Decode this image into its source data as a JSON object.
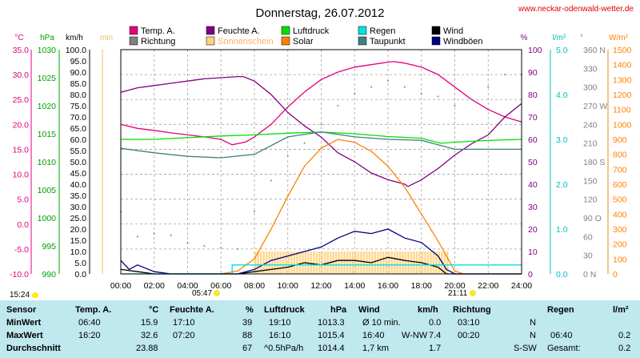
{
  "header": {
    "title": "Donnerstag, 26.07.2012",
    "site": "www.neckar-odenwald-wetter.de"
  },
  "legend": [
    {
      "label": "Temp. A.",
      "color": "#e0007f"
    },
    {
      "label": "Richtung",
      "color": "#808080"
    },
    {
      "label": "Feuchte A.",
      "color": "#800080"
    },
    {
      "label": "Sonnenschein",
      "color": "#ffd080"
    },
    {
      "label": "Luftdruck",
      "color": "#00e000"
    },
    {
      "label": "Solar",
      "color": "#ff8000"
    },
    {
      "label": "Regen",
      "color": "#00e0e0"
    },
    {
      "label": "Taupunkt",
      "color": "#408080"
    },
    {
      "label": "Wind",
      "color": "#000000"
    },
    {
      "label": "Windböen",
      "color": "#000080"
    }
  ],
  "axes_units": {
    "temp": "°C",
    "press": "hPa",
    "wind": "km/h",
    "sun": "min",
    "hum": "%",
    "rain": "l/m²",
    "dir": "°",
    "solar": "W/m²"
  },
  "sun_times": {
    "sunrise_marker": "15:24",
    "sunrise": "05:47",
    "sunset": "21:11"
  },
  "chart_data": {
    "type": "line",
    "title": "Donnerstag, 26.07.2012",
    "x_ticks": [
      "00:00",
      "02:00",
      "04:00",
      "06:00",
      "08:00",
      "10:00",
      "12:00",
      "14:00",
      "16:00",
      "18:00",
      "20:00",
      "22:00",
      "24:00"
    ],
    "x_range": [
      0,
      24
    ],
    "axes": {
      "temp": {
        "range": [
          -10,
          35
        ],
        "ticks": [
          "35.0",
          "30.0",
          "25.0",
          "20.0",
          "15.0",
          "10.0",
          "5.0",
          "0.0",
          "-5.0",
          "-10.0"
        ]
      },
      "press": {
        "range": [
          990,
          1030
        ],
        "ticks": [
          "1030",
          "1025",
          "1020",
          "1015",
          "1010",
          "1005",
          "1000",
          "995",
          "990"
        ]
      },
      "wind": {
        "range": [
          0,
          100
        ],
        "ticks": [
          "100.0",
          "95.0",
          "90.0",
          "85.0",
          "80.0",
          "75.0",
          "70.0",
          "65.0",
          "60.0",
          "55.0",
          "50.0",
          "45.0",
          "40.0",
          "35.0",
          "30.0",
          "25.0",
          "20.0",
          "15.0",
          "10.0",
          "5.0",
          "0.0"
        ]
      },
      "hum": {
        "range": [
          0,
          100
        ],
        "ticks": [
          "100",
          "90",
          "80",
          "70",
          "60",
          "50",
          "40",
          "30",
          "20",
          "10",
          "0"
        ]
      },
      "rain": {
        "range": [
          0,
          5
        ],
        "ticks": [
          "5.0",
          "4.0",
          "3.0",
          "2.0",
          "1.0",
          "0.0"
        ]
      },
      "dir": {
        "range": [
          0,
          360
        ],
        "ticks": [
          "360 N",
          "330",
          "300",
          "270 W",
          "240",
          "210",
          "180 S",
          "150",
          "120",
          "90 O",
          "60",
          "30",
          "0 N"
        ]
      },
      "solar": {
        "range": [
          0,
          1500
        ],
        "ticks": [
          "1500",
          "1400",
          "1300",
          "1200",
          "1100",
          "1000",
          "900",
          "800",
          "700",
          "600",
          "500",
          "400",
          "300",
          "200",
          "100",
          "0"
        ]
      }
    },
    "series": [
      {
        "name": "Temp. A.",
        "axis": "temp",
        "points": [
          [
            0,
            20.0
          ],
          [
            1,
            19.2
          ],
          [
            2,
            18.8
          ],
          [
            3,
            18.3
          ],
          [
            4,
            17.9
          ],
          [
            5,
            17.5
          ],
          [
            6,
            17.0
          ],
          [
            6.67,
            15.9
          ],
          [
            7.5,
            16.5
          ],
          [
            8,
            17.5
          ],
          [
            9,
            20.0
          ],
          [
            10,
            23.5
          ],
          [
            11,
            26.5
          ],
          [
            12,
            29.0
          ],
          [
            13,
            30.5
          ],
          [
            14,
            31.5
          ],
          [
            15,
            32.0
          ],
          [
            16,
            32.5
          ],
          [
            16.33,
            32.6
          ],
          [
            17,
            32.3
          ],
          [
            18,
            31.5
          ],
          [
            19,
            30.0
          ],
          [
            20,
            27.5
          ],
          [
            21,
            25.0
          ],
          [
            22,
            23.0
          ],
          [
            23,
            21.5
          ],
          [
            24,
            20.5
          ]
        ]
      },
      {
        "name": "Feuchte A.",
        "axis": "hum",
        "points": [
          [
            0,
            81
          ],
          [
            1,
            83
          ],
          [
            2,
            84
          ],
          [
            3,
            85
          ],
          [
            4,
            86
          ],
          [
            5,
            87
          ],
          [
            6,
            87.5
          ],
          [
            7,
            88
          ],
          [
            7.33,
            88
          ],
          [
            8,
            86
          ],
          [
            9,
            80
          ],
          [
            10,
            72
          ],
          [
            11,
            66
          ],
          [
            12,
            61
          ],
          [
            13,
            54
          ],
          [
            14,
            50
          ],
          [
            15,
            45
          ],
          [
            16,
            42
          ],
          [
            17,
            40
          ],
          [
            17.2,
            39
          ],
          [
            18,
            42
          ],
          [
            19,
            47
          ],
          [
            20,
            53
          ],
          [
            21,
            58
          ],
          [
            22,
            62
          ],
          [
            23,
            70
          ],
          [
            24,
            76
          ]
        ]
      },
      {
        "name": "Luftdruck",
        "axis": "press",
        "points": [
          [
            0,
            1014.0
          ],
          [
            2,
            1014.0
          ],
          [
            4,
            1014.3
          ],
          [
            6,
            1014.6
          ],
          [
            8,
            1014.8
          ],
          [
            10,
            1015.1
          ],
          [
            12,
            1015.3
          ],
          [
            14,
            1015.0
          ],
          [
            16,
            1014.5
          ],
          [
            18,
            1014.2
          ],
          [
            19.17,
            1013.3
          ],
          [
            20,
            1013.5
          ],
          [
            22,
            1013.8
          ],
          [
            24,
            1014.0
          ]
        ]
      },
      {
        "name": "Taupunkt",
        "axis": "temp",
        "points": [
          [
            0,
            15.2
          ],
          [
            2,
            14.3
          ],
          [
            4,
            13.6
          ],
          [
            6,
            13.3
          ],
          [
            8,
            14.0
          ],
          [
            10,
            17.5
          ],
          [
            12,
            18.5
          ],
          [
            14,
            17.5
          ],
          [
            16,
            17.0
          ],
          [
            18,
            16.8
          ],
          [
            20,
            15.0
          ],
          [
            22,
            15.0
          ],
          [
            24,
            15.0
          ]
        ]
      },
      {
        "name": "Solar",
        "axis": "solar",
        "points": [
          [
            6,
            0
          ],
          [
            7,
            20
          ],
          [
            8,
            100
          ],
          [
            9,
            300
          ],
          [
            10,
            520
          ],
          [
            11,
            720
          ],
          [
            12,
            840
          ],
          [
            13,
            900
          ],
          [
            14,
            880
          ],
          [
            15,
            820
          ],
          [
            16,
            720
          ],
          [
            17,
            580
          ],
          [
            18,
            400
          ],
          [
            19,
            220
          ],
          [
            19.5,
            120
          ],
          [
            20,
            20
          ],
          [
            20.5,
            0
          ]
        ]
      },
      {
        "name": "Wind",
        "axis": "wind",
        "points": [
          [
            0,
            2
          ],
          [
            1,
            1
          ],
          [
            2,
            0
          ],
          [
            3,
            0
          ],
          [
            4,
            0
          ],
          [
            5,
            0
          ],
          [
            6,
            0
          ],
          [
            7,
            0
          ],
          [
            8,
            1
          ],
          [
            9,
            2
          ],
          [
            10,
            3
          ],
          [
            11,
            5
          ],
          [
            12,
            4
          ],
          [
            13,
            6
          ],
          [
            14,
            6
          ],
          [
            15,
            5
          ],
          [
            16,
            7.4
          ],
          [
            17,
            6
          ],
          [
            18,
            5
          ],
          [
            19,
            3
          ],
          [
            19.5,
            0
          ],
          [
            20,
            0
          ],
          [
            22,
            0
          ],
          [
            24,
            0
          ]
        ]
      },
      {
        "name": "Windböen",
        "axis": "wind",
        "points": [
          [
            0,
            6
          ],
          [
            0.5,
            2
          ],
          [
            1,
            4
          ],
          [
            2,
            1
          ],
          [
            3,
            0
          ],
          [
            4,
            0
          ],
          [
            5,
            0
          ],
          [
            6,
            0
          ],
          [
            7,
            0
          ],
          [
            8,
            2
          ],
          [
            9,
            6
          ],
          [
            10,
            8
          ],
          [
            11,
            10
          ],
          [
            12,
            12
          ],
          [
            13,
            16
          ],
          [
            14,
            19
          ],
          [
            15,
            18
          ],
          [
            16,
            20
          ],
          [
            17,
            16
          ],
          [
            18,
            14
          ],
          [
            19,
            8
          ],
          [
            19.5,
            2
          ],
          [
            20,
            0
          ],
          [
            22,
            0
          ],
          [
            24,
            0
          ]
        ]
      },
      {
        "name": "Regen",
        "axis": "rain",
        "points": [
          [
            0,
            0
          ],
          [
            6.67,
            0
          ],
          [
            6.67,
            0.2
          ],
          [
            24,
            0.2
          ]
        ]
      }
    ],
    "richtung_points": [
      [
        0,
        100
      ],
      [
        1,
        60
      ],
      [
        2,
        65
      ],
      [
        3,
        62
      ],
      [
        4,
        50
      ],
      [
        5,
        45
      ],
      [
        6,
        42
      ],
      [
        7,
        40
      ],
      [
        8,
        100
      ],
      [
        9,
        150
      ],
      [
        10,
        190
      ],
      [
        11,
        210
      ],
      [
        12,
        240
      ],
      [
        13,
        270
      ],
      [
        14,
        290
      ],
      [
        15,
        300
      ],
      [
        16,
        310
      ],
      [
        17,
        300
      ],
      [
        18,
        290
      ],
      [
        19,
        285
      ],
      [
        20,
        270
      ],
      [
        21,
        280
      ],
      [
        22,
        300
      ],
      [
        23,
        320
      ],
      [
        24,
        320
      ]
    ],
    "sonnenschein_bars": {
      "from": 8,
      "to": 19.5,
      "value": 10
    }
  },
  "summary": {
    "headers": {
      "sensor": "Sensor",
      "temp": "Temp. A.",
      "temp_unit": "°C",
      "hum": "Feuchte A.",
      "hum_unit": "%",
      "press": "Luftdruck",
      "press_unit": "hPa",
      "wind": "Wind",
      "wind_unit": "km/h",
      "dir": "Richtung",
      "rain": "Regen",
      "rain_unit": "l/m²"
    },
    "min": {
      "label": "MinWert",
      "temp_time": "06:40",
      "temp": "15.9",
      "hum_time": "17:10",
      "hum": "39",
      "press_time": "19:10",
      "press": "1013.3",
      "wind_time": "Ø 10 min.",
      "wind": "0.0",
      "dir_time": "03:10",
      "dir": "N"
    },
    "max": {
      "label": "MaxWert",
      "temp_time": "16:20",
      "temp": "32.6",
      "hum_time": "07:20",
      "hum": "88",
      "press_time": "16:10",
      "press": "1015.4",
      "wind_time": "16:40",
      "wind_dir": "W-NW",
      "wind": "7.4",
      "dir_time": "00:20",
      "dir": "N",
      "rain_time": "06:40",
      "rain": "0.2"
    },
    "avg": {
      "label": "Durchschnitt",
      "temp": "23.88",
      "hum": "67",
      "press_trend": "^0.5hPa/h",
      "press": "1014.4",
      "wind_dist": "1,7 km",
      "wind": "1.7",
      "dir": "S-SW",
      "rain_label": "Gesamt:",
      "rain": "0.2"
    }
  }
}
